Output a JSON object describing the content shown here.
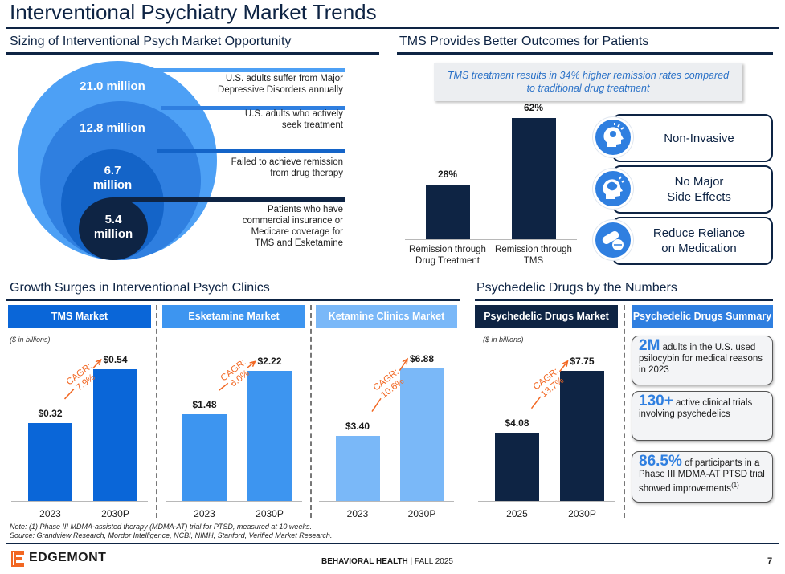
{
  "title": "Interventional Psychiatry Market Trends",
  "sections": {
    "sizing": "Sizing of Interventional Psych Market Opportunity",
    "tms_outcomes": "TMS Provides Better Outcomes for Patients",
    "growth": "Growth Surges in Interventional Psych Clinics",
    "psychedelic": "Psychedelic Drugs by the Numbers"
  },
  "funnel": [
    {
      "value": "21.0 million",
      "desc": [
        "U.S. adults suffer from Major",
        "Depressive Disorders annually"
      ],
      "color": "#4da0f5"
    },
    {
      "value": "12.8 million",
      "desc": [
        "U.S. adults who actively",
        "seek treatment"
      ],
      "color": "#2f7fe0"
    },
    {
      "value_lines": [
        "6.7",
        "million"
      ],
      "value": "6.7 million",
      "desc": [
        "Failed to achieve remission",
        "from drug therapy"
      ],
      "color": "#1464c8"
    },
    {
      "value_lines": [
        "5.4",
        "million"
      ],
      "value": "5.4 million",
      "desc": [
        "Patients who have",
        "commercial insurance or",
        "Medicare coverage for",
        "TMS and Esketamine"
      ],
      "color": "#0e2444"
    }
  ],
  "tms_callout": [
    "TMS treatment results in 34% higher remission rates compared",
    "to traditional drug treatment"
  ],
  "benefits": [
    {
      "label": [
        "Non-Invasive"
      ],
      "icon": "head-icon"
    },
    {
      "label": [
        "No Major",
        "Side Effects"
      ],
      "icon": "brain-icon"
    },
    {
      "label": [
        "Reduce Reliance",
        "on Medication"
      ],
      "icon": "pills-icon"
    }
  ],
  "market_headers": {
    "tms": "TMS Market",
    "esketamine": "Esketamine Market",
    "ketamine": "Ketamine Clinics Market",
    "psychedelic": "Psychedelic Drugs Market",
    "summary": "Psychedelic Drugs Summary"
  },
  "units_note": "($ in billions)",
  "cagr_label": "CAGR:",
  "psychedelic_stats": [
    {
      "big": "2M",
      "text": " adults in the U.S. used psilocybin for medical reasons in 2023",
      "sup": ""
    },
    {
      "big": "130+",
      "text": " active clinical trials involving psychedelics",
      "sup": ""
    },
    {
      "big": "86.5%",
      "text": " of participants in a Phase III MDMA-AT PTSD trial showed improvements",
      "sup": "(1)"
    }
  ],
  "footnotes": {
    "note": "Note: (1) Phase III MDMA-assisted therapy (MDMA-AT) trial for PTSD, measured at 10 weeks.",
    "source": "Source: Grandview Research, Mordor Intelligence, NCBI, NIMH, Stanford, Verified Market Research."
  },
  "footer": {
    "logo": "EDGEMONT",
    "center_bold": "BEHAVIORAL HEALTH",
    "center_rest": " | FALL 2025",
    "page": "7"
  },
  "colors": {
    "navy": "#0e2444",
    "tms_blue": "#0a66d8",
    "esketamine_blue": "#3d95f0",
    "ketamine_blue": "#7ab8f8",
    "orange": "#f26722"
  },
  "chart_data": [
    {
      "type": "bar",
      "categories": [
        "Remission through Drug Treatment",
        "Remission through TMS"
      ],
      "category_lines": [
        [
          "Remission through",
          "Drug Treatment"
        ],
        [
          "Remission through",
          "TMS"
        ]
      ],
      "values": [
        28,
        62
      ],
      "labels": [
        "28%",
        "62%"
      ],
      "ylim": [
        0,
        70
      ]
    },
    {
      "type": "bar",
      "title": "TMS Market",
      "categories": [
        "2023",
        "2030P"
      ],
      "values": [
        0.32,
        0.54
      ],
      "labels": [
        "$0.32",
        "$0.54"
      ],
      "cagr": "7.9%",
      "ylim": [
        0,
        0.6
      ]
    },
    {
      "type": "bar",
      "title": "Esketamine Market",
      "categories": [
        "2023",
        "2030P"
      ],
      "values": [
        1.48,
        2.22
      ],
      "labels": [
        "$1.48",
        "$2.22"
      ],
      "cagr": "6.0%",
      "ylim": [
        0,
        2.5
      ]
    },
    {
      "type": "bar",
      "title": "Ketamine Clinics Market",
      "categories": [
        "2023",
        "2030P"
      ],
      "values": [
        3.4,
        6.88
      ],
      "labels": [
        "$3.40",
        "$6.88"
      ],
      "cagr": "10.6%",
      "ylim": [
        0,
        7.6
      ]
    },
    {
      "type": "bar",
      "title": "Psychedelic Drugs Market",
      "categories": [
        "2025",
        "2030P"
      ],
      "values": [
        4.08,
        7.75
      ],
      "labels": [
        "$4.08",
        "$7.75"
      ],
      "cagr": "13.7%",
      "ylim": [
        0,
        8.7
      ]
    }
  ]
}
